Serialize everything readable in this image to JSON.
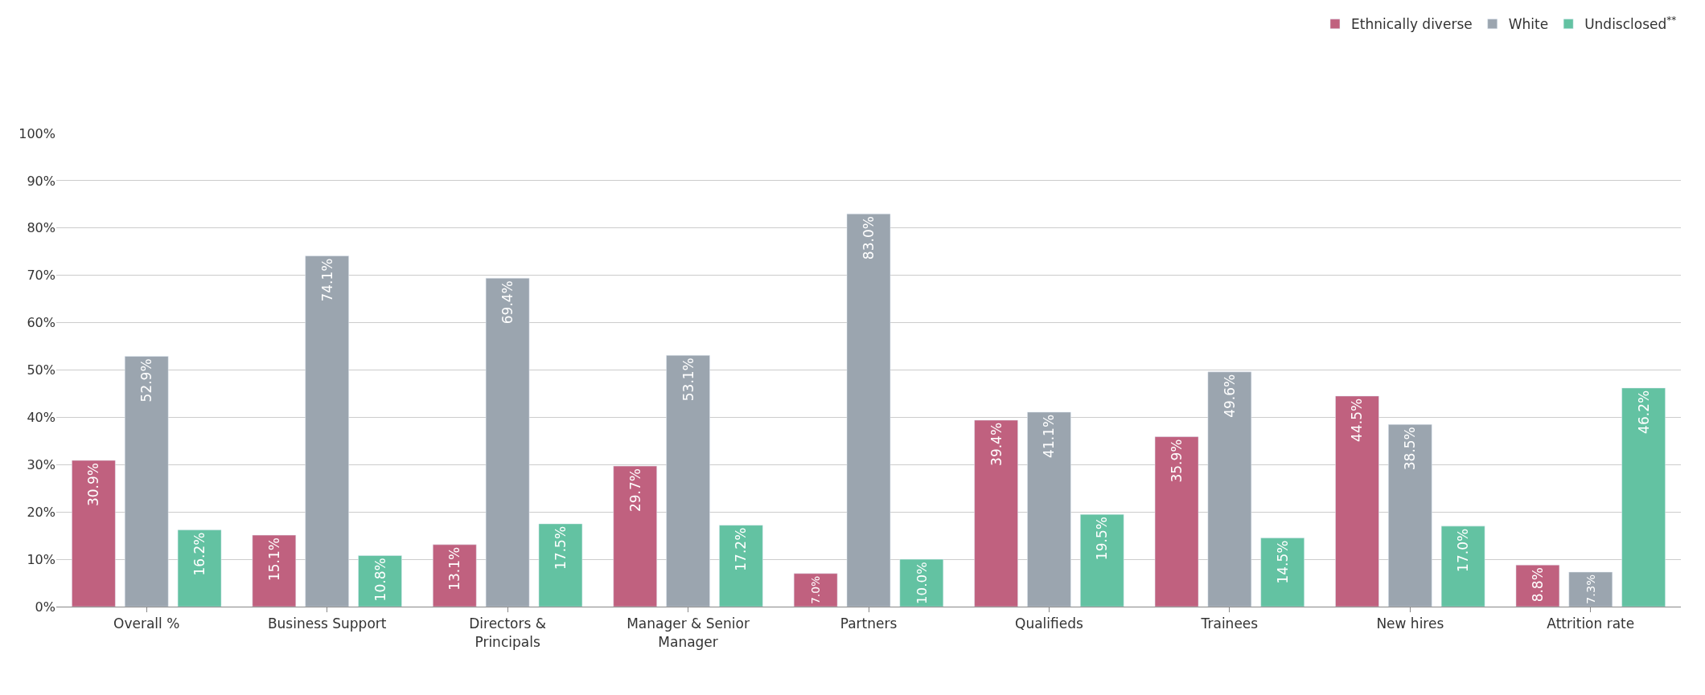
{
  "chart_data": {
    "type": "bar",
    "categories": [
      "Overall %",
      "Business Support",
      "Directors & Principals",
      "Manager & Senior Manager",
      "Partners",
      "Qualifieds",
      "Trainees",
      "New hires",
      "Attrition rate"
    ],
    "series": [
      {
        "name": "Ethnically diverse",
        "color": "#c0617f",
        "values": [
          30.9,
          15.1,
          13.1,
          29.7,
          7.0,
          39.4,
          35.9,
          44.5,
          8.8
        ],
        "value_labels": [
          "30.9%",
          "15.1%",
          "13.1%",
          "29.7%",
          "7.0%",
          "39.4%",
          "35.9%",
          "44.5%",
          "8.8%"
        ]
      },
      {
        "name": "White",
        "color": "#9ba5af",
        "values": [
          52.9,
          74.1,
          69.4,
          53.1,
          83.0,
          41.1,
          49.6,
          38.5,
          7.3
        ],
        "value_labels": [
          "52.9%",
          "74.1%",
          "69.4%",
          "53.1%",
          "83.0%",
          "41.1%",
          "49.6%",
          "38.5%",
          "7.3%"
        ]
      },
      {
        "name": "Undisclosed$^{**}$",
        "color": "#63c2a2",
        "values": [
          16.2,
          10.8,
          17.5,
          17.2,
          10.0,
          19.5,
          14.5,
          17.0,
          46.2
        ],
        "value_labels": [
          "16.2%",
          "10.8%",
          "17.5%",
          "17.2%",
          "10.0%",
          "19.5%",
          "14.5%",
          "17.0%",
          "46.2%"
        ]
      }
    ],
    "ylim": [
      0,
      100
    ],
    "yticks": [
      {
        "value": 0,
        "label": "0%"
      },
      {
        "value": 10,
        "label": "10%"
      },
      {
        "value": 20,
        "label": "20%"
      },
      {
        "value": 30,
        "label": "30%"
      },
      {
        "value": 40,
        "label": "40%"
      },
      {
        "value": 50,
        "label": "50%"
      },
      {
        "value": 60,
        "label": "60%"
      },
      {
        "value": 70,
        "label": "70%"
      },
      {
        "value": 80,
        "label": "80%"
      },
      {
        "value": 90,
        "label": "90%"
      },
      {
        "value": 100,
        "label": "100%"
      }
    ],
    "grid": "y",
    "legend": "top right"
  }
}
